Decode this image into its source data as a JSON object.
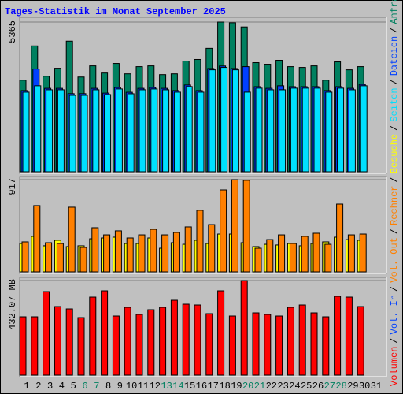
{
  "chart_data": [
    {
      "type": "bar",
      "title": "Tages-Statistik im Monat September 2025",
      "legend_separator": "/",
      "ylim": [
        0,
        5365
      ],
      "yticks": [
        5365
      ],
      "series": [
        {
          "name": "Anfragen",
          "color": "#008060",
          "values": [
            3282,
            4509,
            3424,
            3710,
            4680,
            3396,
            3795,
            3539,
            3881,
            3510,
            3767,
            3795,
            3482,
            3510,
            3967,
            4024,
            4423,
            5365,
            5340,
            5190,
            3910,
            3853,
            3995,
            3767,
            3739,
            3795,
            3282,
            3938,
            3653,
            3767,
            null
          ]
        },
        {
          "name": "Dateien",
          "color": "#0040ff",
          "values": [
            2910,
            3682,
            2990,
            2990,
            2800,
            2800,
            2990,
            2820,
            3020,
            2850,
            2990,
            3020,
            2990,
            2910,
            3110,
            2910,
            3700,
            3790,
            3700,
            3767,
            3050,
            2990,
            3082,
            3050,
            3050,
            3050,
            2910,
            3050,
            2990,
            3130,
            null
          ]
        },
        {
          "name": "Seiten",
          "color": "#00e0ff",
          "values": [
            2854,
            3082,
            2939,
            2939,
            2740,
            2740,
            2939,
            2768,
            2968,
            2797,
            2939,
            2968,
            2939,
            2854,
            3054,
            2854,
            3653,
            3739,
            3653,
            2854,
            2997,
            2939,
            2939,
            2997,
            2997,
            2997,
            2854,
            2997,
            2939,
            3082,
            null
          ]
        }
      ]
    },
    {
      "type": "bar",
      "ylim": [
        0,
        917
      ],
      "yticks": [
        917
      ],
      "series": [
        {
          "name": "Besuche",
          "color": "#ffff00",
          "values": [
            282,
            353,
            259,
            314,
            251,
            259,
            329,
            337,
            345,
            282,
            282,
            337,
            235,
            290,
            274,
            314,
            282,
            376,
            376,
            290,
            251,
            274,
            267,
            282,
            259,
            282,
            298,
            345,
            321,
            314,
            null
          ]
        },
        {
          "name": "Rechner",
          "color": "#ff8000",
          "values": [
            298,
            659,
            290,
            282,
            643,
            243,
            439,
            368,
            408,
            337,
            368,
            423,
            368,
            392,
            447,
            612,
            470,
            815,
            917,
            910,
            235,
            321,
            368,
            282,
            353,
            384,
            274,
            674,
            368,
            376,
            null
          ]
        }
      ]
    },
    {
      "type": "bar",
      "ylim": [
        0,
        432.07
      ],
      "yticks": [
        {
          "value": 432.07,
          "label": "432.07 MB"
        }
      ],
      "categories": [
        "1",
        "2",
        "3",
        "4",
        "5",
        "6",
        "7",
        "8",
        "9",
        "10",
        "11",
        "12",
        "13",
        "14",
        "15",
        "16",
        "17",
        "18",
        "19",
        "20",
        "21",
        "22",
        "23",
        "24",
        "25",
        "26",
        "27",
        "28",
        "29",
        "30",
        "31"
      ],
      "category_colors": [
        "#000000",
        "#000000",
        "#000000",
        "#000000",
        "#000000",
        "#008060",
        "#008060",
        "#000000",
        "#000000",
        "#000000",
        "#000000",
        "#000000",
        "#008060",
        "#008060",
        "#000000",
        "#000000",
        "#000000",
        "#000000",
        "#000000",
        "#008060",
        "#008060",
        "#000000",
        "#000000",
        "#000000",
        "#000000",
        "#000000",
        "#008060",
        "#008060",
        "#000000",
        "#000000",
        "#000000"
      ],
      "series": [
        {
          "name": "Volumen",
          "color": "#ff0000",
          "values": [
            266.4,
            266.4,
            381.6,
            313.2,
            302.4,
            262.8,
            356.4,
            385.2,
            270,
            309.6,
            277.2,
            298.8,
            309.6,
            342,
            324,
            320.4,
            280.8,
            385.2,
            270,
            432.07,
            284.4,
            277.2,
            270,
            309.6,
            320.4,
            284.4,
            266.4,
            360,
            356.4,
            313.2,
            null
          ]
        }
      ],
      "legend_extra": [
        {
          "name": "Vol. In",
          "color": "#0040ff"
        },
        {
          "name": "Vol. Out",
          "color": "#ff8000"
        }
      ]
    }
  ]
}
